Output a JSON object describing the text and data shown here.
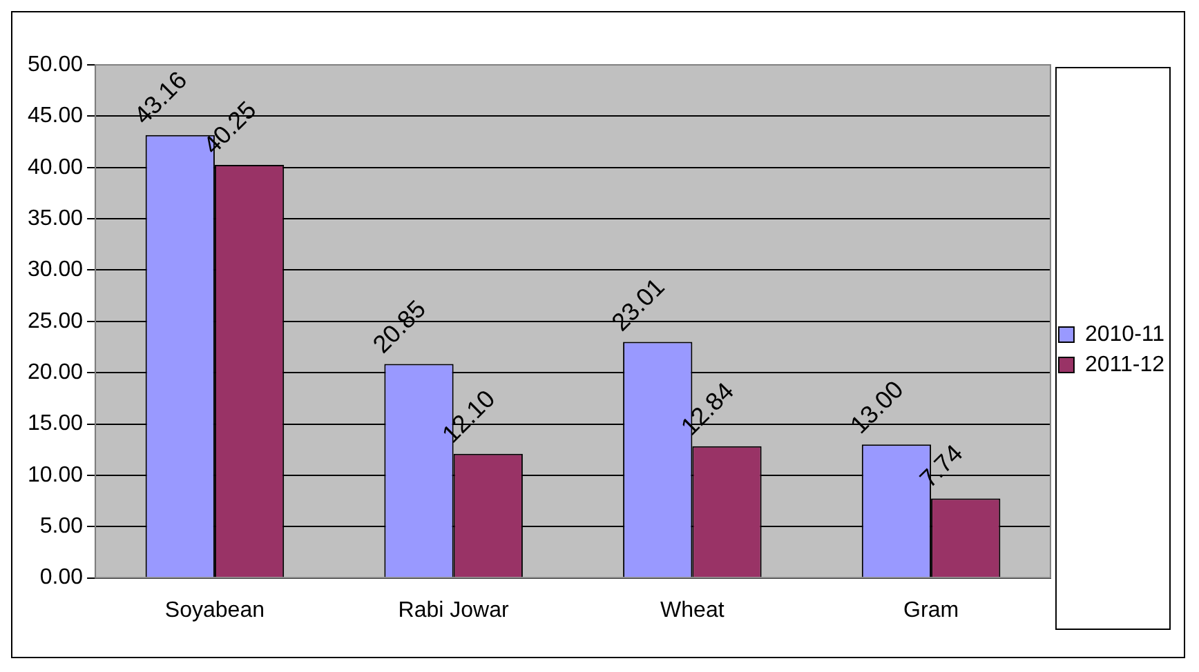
{
  "chart_data": {
    "type": "bar",
    "categories": [
      "Soyabean",
      "Rabi Jowar",
      "Wheat",
      "Gram"
    ],
    "series": [
      {
        "name": "2010-11",
        "color": "#9999ff",
        "values": [
          43.16,
          20.85,
          23.01,
          13.0
        ],
        "value_labels": [
          "43.16",
          "20.85",
          "23.01",
          "13.00"
        ]
      },
      {
        "name": "2011-12",
        "color": "#993366",
        "values": [
          40.25,
          12.1,
          12.84,
          7.74
        ],
        "value_labels": [
          "40.25",
          "12.10",
          "12.84",
          "7.74"
        ]
      }
    ],
    "ylim": [
      0,
      50
    ],
    "yticks": [
      {
        "value": 0,
        "label": "0.00"
      },
      {
        "value": 5,
        "label": "5.00"
      },
      {
        "value": 10,
        "label": "10.00"
      },
      {
        "value": 15,
        "label": "15.00"
      },
      {
        "value": 20,
        "label": "20.00"
      },
      {
        "value": 25,
        "label": "25.00"
      },
      {
        "value": 30,
        "label": "30.00"
      },
      {
        "value": 35,
        "label": "35.00"
      },
      {
        "value": 40,
        "label": "40.00"
      },
      {
        "value": 45,
        "label": "45.00"
      },
      {
        "value": 50,
        "label": "50.00"
      }
    ],
    "grid": "y",
    "legend": "right"
  }
}
